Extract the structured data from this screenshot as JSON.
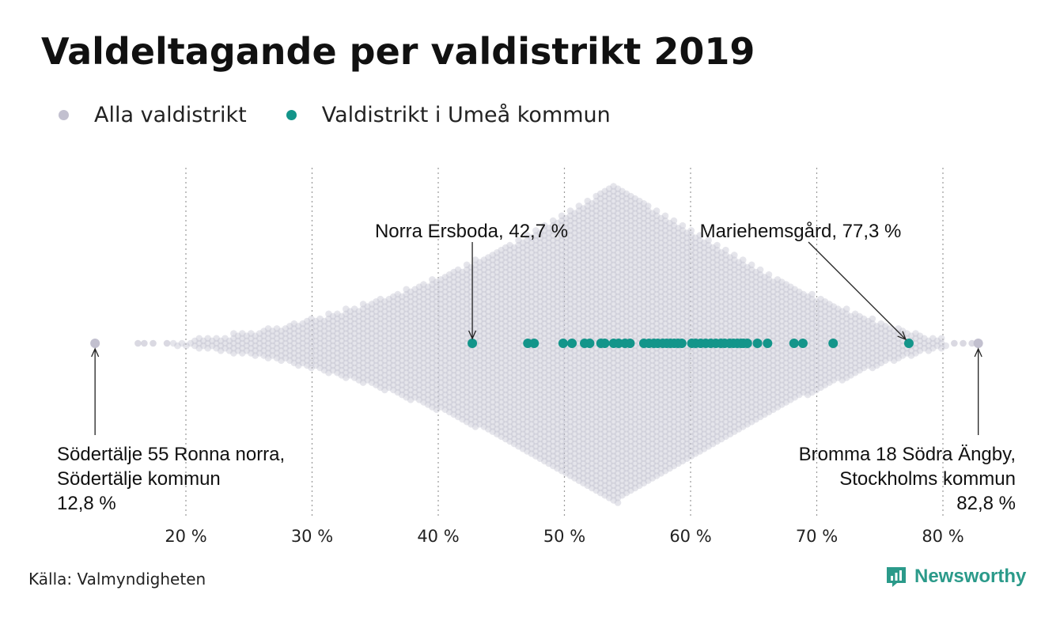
{
  "title": "Valdeltagande per valdistrikt 2019",
  "legend": [
    {
      "label": "Alla valdistrikt",
      "color": "#c2c0cf"
    },
    {
      "label": "Valdistrikt i Umeå kommun",
      "color": "#13958a"
    }
  ],
  "source": "Källa: Valmyndigheten",
  "brand": {
    "name": "Newsworthy",
    "icon": "newsworthy-logo-icon",
    "color": "#2b9a8a"
  },
  "chart_data": {
    "type": "scatter",
    "subtype": "beeswarm",
    "xlim": [
      12,
      84
    ],
    "x_ticks": [
      20,
      30,
      40,
      50,
      60,
      70,
      80
    ],
    "x_tick_labels": [
      "20 %",
      "30 %",
      "40 %",
      "50 %",
      "60 %",
      "70 %",
      "80 %"
    ],
    "grid": "vertical dotted",
    "series": [
      {
        "name": "Alla valdistrikt",
        "color": "#c2c0cf",
        "distribution_range": [
          12.8,
          82.8
        ],
        "mode": 54,
        "values": [
          12.8,
          16.2,
          16.7,
          17.4,
          18.5,
          82.8,
          82.3,
          81.6,
          80.9
        ]
      },
      {
        "name": "Valdistrikt i Umeå kommun",
        "color": "#13958a",
        "values": [
          42.7,
          47.1,
          47.6,
          49.9,
          50.6,
          51.6,
          52.0,
          52.9,
          53.2,
          53.9,
          54.3,
          54.8,
          55.2,
          56.3,
          56.7,
          57.1,
          57.4,
          57.8,
          58.1,
          58.4,
          58.7,
          59.0,
          59.3,
          60.1,
          60.4,
          60.8,
          61.2,
          61.6,
          62.0,
          62.4,
          62.7,
          63.1,
          63.4,
          63.7,
          64.0,
          64.2,
          64.5,
          65.3,
          66.1,
          68.2,
          68.9,
          71.3,
          77.3
        ]
      }
    ],
    "annotations": [
      {
        "x": 42.7,
        "lines": [
          "Norra Ersboda, 42,7 %"
        ]
      },
      {
        "x": 77.3,
        "lines": [
          "Mariehemsgård, 77,3 %"
        ]
      },
      {
        "x": 12.8,
        "lines": [
          "Södertälje 55 Ronna norra,",
          "Södertälje kommun",
          "12,8 %"
        ]
      },
      {
        "x": 82.8,
        "lines": [
          "Bromma 18 Södra Ängby,",
          "Stockholms kommun",
          "82,8 %"
        ]
      }
    ]
  }
}
